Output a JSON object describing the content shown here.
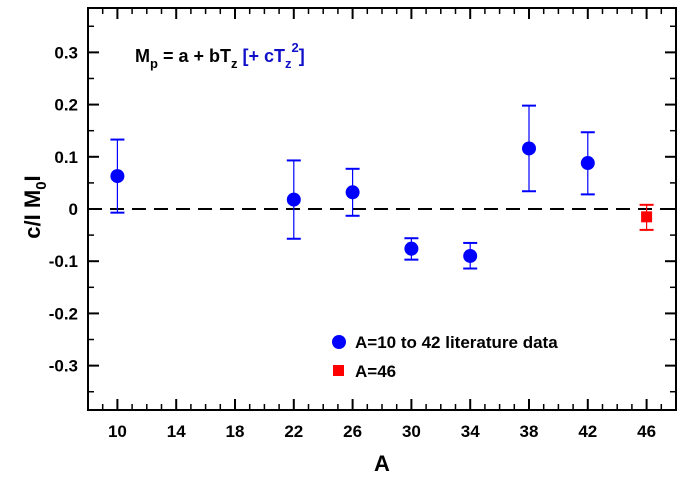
{
  "chart_data": {
    "type": "scatter",
    "xlabel": "A",
    "ylabel_parts": {
      "pre": "c/I M",
      "sub": "0",
      "post": "I"
    },
    "xlim": [
      8,
      48
    ],
    "ylim": [
      -0.385,
      0.385
    ],
    "x_ticks": [
      10,
      14,
      18,
      22,
      26,
      30,
      34,
      38,
      42,
      46
    ],
    "y_ticks": [
      -0.3,
      -0.2,
      -0.1,
      0,
      0.1,
      0.2,
      0.3
    ],
    "y_tick_labels": [
      "-0.3",
      "-0.2",
      "-0.1",
      "0",
      "0.1",
      "0.2",
      "0.3"
    ],
    "reference_line": {
      "y": 0,
      "style": "dashed"
    },
    "annotation": {
      "main": {
        "M": "M",
        "p": "p",
        "eq": " = a + bT",
        "z": "z"
      },
      "bracket": {
        "open": " [+ cT",
        "z": "z",
        "exp": "2",
        "close": "]"
      },
      "main_color": "#000000",
      "bracket_color": "#1010c8"
    },
    "series": [
      {
        "name": "A=10 to 42 literature data",
        "marker": "circle",
        "color": "#0000ff",
        "points": [
          {
            "x": 10,
            "y": 0.063,
            "y_low": -0.007,
            "y_high": 0.133
          },
          {
            "x": 22,
            "y": 0.018,
            "y_low": -0.057,
            "y_high": 0.093
          },
          {
            "x": 26,
            "y": 0.032,
            "y_low": -0.013,
            "y_high": 0.077
          },
          {
            "x": 30,
            "y": -0.076,
            "y_low": -0.097,
            "y_high": -0.056
          },
          {
            "x": 34,
            "y": -0.09,
            "y_low": -0.114,
            "y_high": -0.065
          },
          {
            "x": 38,
            "y": 0.116,
            "y_low": 0.034,
            "y_high": 0.198
          },
          {
            "x": 42,
            "y": 0.088,
            "y_low": 0.028,
            "y_high": 0.147
          }
        ]
      },
      {
        "name": "A=46",
        "marker": "square",
        "color": "#ff0000",
        "points": [
          {
            "x": 46,
            "y": -0.015,
            "y_low": -0.04,
            "y_high": 0.008
          }
        ]
      }
    ],
    "legend_position": "bottom-right"
  }
}
